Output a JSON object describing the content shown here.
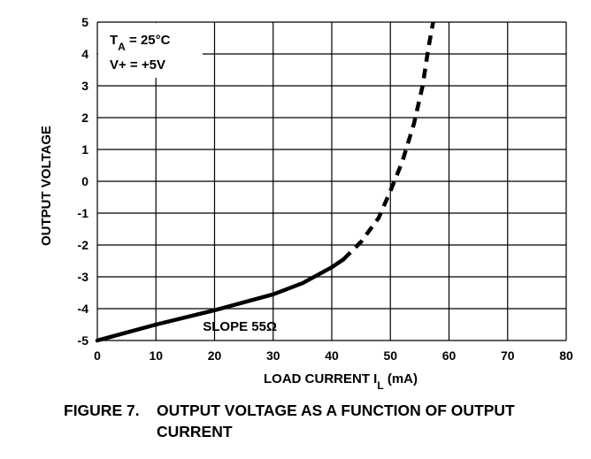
{
  "chart_data": {
    "type": "line",
    "xlabel_main": "LOAD CURRENT I",
    "xlabel_sub": "L",
    "xlabel_unit": " (mA)",
    "ylabel": "OUTPUT VOLTAGE",
    "xlim": [
      0,
      80
    ],
    "ylim": [
      -5,
      5
    ],
    "x_ticks": [
      "0",
      "10",
      "20",
      "30",
      "40",
      "50",
      "60",
      "70",
      "80"
    ],
    "y_ticks": [
      "5",
      "4",
      "3",
      "2",
      "1",
      "0",
      "-1",
      "-2",
      "-3",
      "-4",
      "-5"
    ],
    "grid": true,
    "series": [
      {
        "style": "solid",
        "points": [
          [
            0,
            -5.0
          ],
          [
            10,
            -4.5
          ],
          [
            20,
            -4.05
          ],
          [
            30,
            -3.55
          ],
          [
            35,
            -3.2
          ],
          [
            40,
            -2.7
          ],
          [
            42,
            -2.45
          ]
        ]
      },
      {
        "style": "dashed",
        "points": [
          [
            42,
            -2.45
          ],
          [
            45,
            -1.9
          ],
          [
            48,
            -1.15
          ],
          [
            50,
            -0.3
          ],
          [
            52,
            0.6
          ],
          [
            54,
            1.8
          ],
          [
            55.5,
            3.0
          ],
          [
            56.5,
            4.2
          ],
          [
            57.3,
            5.0
          ]
        ]
      }
    ],
    "conditions": {
      "ta_main": "T",
      "ta_sub": "A",
      "ta_value": " = 25°C",
      "vplus": "V+ = +5V"
    },
    "annotation": "SLOPE 55Ω"
  },
  "caption": {
    "number": "FIGURE 7.",
    "text": "OUTPUT VOLTAGE AS A FUNCTION OF OUTPUT CURRENT"
  }
}
